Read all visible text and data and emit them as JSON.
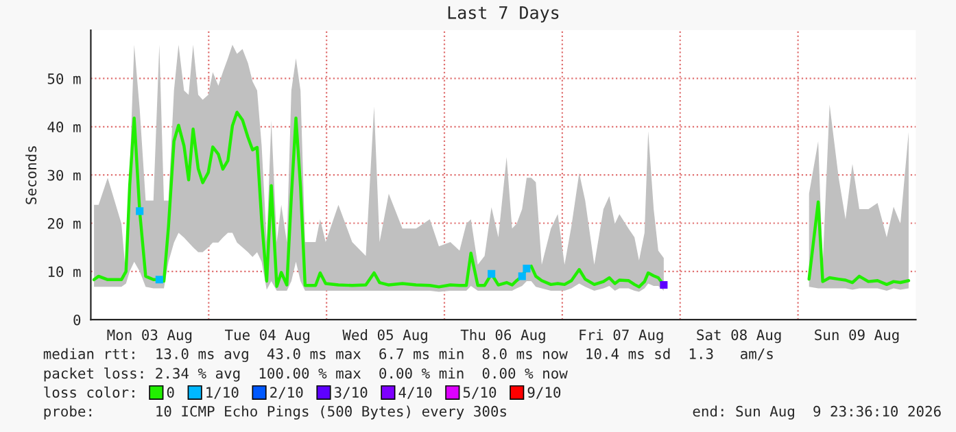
{
  "chart_data": {
    "type": "line",
    "title": "Last 7 Days",
    "ylabel": "Seconds",
    "xlim": [
      "2026-08-03T00:00",
      "2026-08-10T00:00"
    ],
    "ylim": [
      0,
      60
    ],
    "xticks": [
      {
        "value": "2026-08-03T12:00",
        "label": "Mon 03 Aug"
      },
      {
        "value": "2026-08-04T12:00",
        "label": "Tue 04 Aug"
      },
      {
        "value": "2026-08-05T12:00",
        "label": "Wed 05 Aug"
      },
      {
        "value": "2026-08-06T12:00",
        "label": "Thu 06 Aug"
      },
      {
        "value": "2026-08-07T12:00",
        "label": "Fri 07 Aug"
      },
      {
        "value": "2026-08-08T12:00",
        "label": "Sat 08 Aug"
      },
      {
        "value": "2026-08-09T12:00",
        "label": "Sun 09 Aug"
      }
    ],
    "yticks": [
      0,
      {
        "value": 10,
        "label": "10 m"
      },
      {
        "value": 20,
        "label": "20 m"
      },
      {
        "value": 30,
        "label": "30 m"
      },
      {
        "value": 40,
        "label": "40 m"
      },
      {
        "value": 50,
        "label": "50 m"
      }
    ],
    "grid": "y",
    "legend": "bottom",
    "legend_title": "loss color:",
    "ref_lines": [
      {
        "axis": "x",
        "value": "2026-08-04T00:00",
        "color": "#e07070",
        "line_style": "dotted"
      },
      {
        "axis": "x",
        "value": "2026-08-05T00:00",
        "color": "#e07070",
        "line_style": "dotted"
      },
      {
        "axis": "x",
        "value": "2026-08-06T00:00",
        "color": "#e07070",
        "line_style": "dotted"
      },
      {
        "axis": "x",
        "value": "2026-08-07T00:00",
        "color": "#e07070",
        "line_style": "dotted"
      },
      {
        "axis": "x",
        "value": "2026-08-08T00:00",
        "color": "#e07070",
        "line_style": "dotted"
      },
      {
        "axis": "x",
        "value": "2026-08-09T00:00",
        "color": "#e07070",
        "line_style": "dotted"
      }
    ],
    "series": [
      {
        "name": "0",
        "color": "#22ee00",
        "x": [
          "2026-08-03T00:39",
          "2026-08-03T01:35",
          "2026-08-03T03:26",
          "2026-08-03T06:14",
          "2026-08-03T07:10",
          "2026-08-03T07:55",
          "2026-08-03T08:50",
          "2026-08-03T09:57",
          "2026-08-03T11:10",
          "2026-08-03T12:45",
          "2026-08-03T13:57",
          "2026-08-03T14:53",
          "2026-08-03T15:49",
          "2026-08-03T16:56",
          "2026-08-03T17:52",
          "2026-08-03T18:59",
          "2026-08-03T19:55",
          "2026-08-03T20:50",
          "2026-08-03T21:52",
          "2026-08-03T22:47",
          "2026-08-03T23:55",
          "2026-08-04T00:50",
          "2026-08-04T01:58",
          "2026-08-04T02:53",
          "2026-08-04T03:55",
          "2026-08-04T04:50",
          "2026-08-04T05:46",
          "2026-08-04T06:53",
          "2026-08-04T08:00",
          "2026-08-04T08:56",
          "2026-08-04T09:52",
          "2026-08-04T10:47",
          "2026-08-04T11:49",
          "2026-08-04T12:45",
          "2026-08-04T13:52",
          "2026-08-04T14:47",
          "2026-08-04T15:55",
          "2026-08-04T16:50",
          "2026-08-04T17:46",
          "2026-08-04T18:42",
          "2026-08-04T19:38",
          "2026-08-04T21:46",
          "2026-08-04T22:42",
          "2026-08-04T23:49",
          "2026-08-05T02:25",
          "2026-08-05T05:13",
          "2026-08-05T08:00",
          "2026-08-05T09:41",
          "2026-08-05T10:48",
          "2026-08-05T12:40",
          "2026-08-05T15:27",
          "2026-08-05T18:14",
          "2026-08-05T21:02",
          "2026-08-05T22:53",
          "2026-08-06T01:13",
          "2026-08-06T03:05",
          "2026-08-06T04:28",
          "2026-08-06T05:24",
          "2026-08-06T06:48",
          "2026-08-06T08:11",
          "2026-08-06T09:35",
          "2026-08-06T10:59",
          "2026-08-06T12:40",
          "2026-08-06T13:47",
          "2026-08-06T14:43",
          "2026-08-06T15:49",
          "2026-08-06T16:45",
          "2026-08-06T17:41",
          "2026-08-06T18:37",
          "2026-08-06T19:49",
          "2026-08-06T21:41",
          "2026-08-06T23:05",
          "2026-08-07T00:28",
          "2026-08-07T01:52",
          "2026-08-07T03:27",
          "2026-08-07T04:40",
          "2026-08-07T06:31",
          "2026-08-07T08:23",
          "2026-08-07T09:35",
          "2026-08-07T10:43",
          "2026-08-07T11:38",
          "2026-08-07T13:29",
          "2026-08-07T14:42",
          "2026-08-07T15:38",
          "2026-08-07T16:45",
          "2026-08-07T17:30",
          "2026-08-07T18:37",
          "2026-08-07T19:33",
          "2026-08-07T20:40",
          "2026-08-08T10:00",
          "2026-08-09T02:15",
          "2026-08-09T04:07",
          "2026-08-09T05:02",
          "2026-08-09T06:26",
          "2026-08-09T08:17",
          "2026-08-09T09:41",
          "2026-08-09T11:05",
          "2026-08-09T12:29",
          "2026-08-09T14:20",
          "2026-08-09T16:12",
          "2026-08-09T18:04",
          "2026-08-09T19:28",
          "2026-08-09T20:51",
          "2026-08-09T22:32"
        ],
        "values": [
          8.3,
          9,
          8.3,
          8.3,
          10,
          27.8,
          41.8,
          22.5,
          9,
          8.3,
          8.3,
          8,
          19.3,
          37,
          40.3,
          36,
          29,
          39.5,
          31.3,
          28.4,
          30.5,
          35.8,
          34.3,
          31.2,
          33,
          40.2,
          43,
          41.4,
          37.8,
          35.2,
          35.7,
          20.6,
          8,
          27.8,
          6.9,
          9.8,
          7.2,
          25.5,
          41.8,
          27.6,
          7.1,
          7.1,
          9.7,
          7.5,
          7.2,
          7.1,
          7.2,
          9.7,
          7.7,
          7.2,
          7.5,
          7.2,
          7.1,
          6.8,
          7.2,
          7.1,
          7.1,
          13.8,
          7.1,
          7.1,
          9.5,
          7.2,
          7.7,
          7.2,
          8.1,
          9,
          10.6,
          11.1,
          9,
          8.1,
          7.3,
          7.5,
          7.3,
          8.1,
          10.4,
          8.4,
          7.3,
          7.9,
          8.7,
          7.5,
          8.2,
          8.1,
          7.3,
          6.8,
          7.9,
          9.7,
          9.1,
          8.7,
          7.2,
          null,
          8.4,
          24.4,
          7.9,
          8.7,
          8.4,
          8.2,
          7.7,
          9,
          7.9,
          8.1,
          7.3,
          7.9,
          7.7,
          8.1
        ],
        "lower": [
          6.8,
          6.8,
          6.8,
          6.8,
          7.5,
          10,
          12,
          10,
          6.8,
          6.5,
          6.5,
          6.5,
          12,
          16,
          18,
          17,
          16,
          15,
          14,
          14,
          15,
          16,
          16,
          17,
          18,
          18,
          16,
          15,
          14,
          13,
          14,
          12,
          6.2,
          8,
          6,
          6,
          6,
          8,
          12,
          8,
          6,
          6,
          6,
          6,
          6,
          6,
          6,
          6,
          6,
          6,
          6,
          6,
          6,
          5.8,
          6,
          6,
          6,
          7,
          6,
          6,
          6,
          6,
          6,
          6,
          6.5,
          7,
          8,
          8,
          6.8,
          6.5,
          6,
          6,
          6,
          6.5,
          7.5,
          6.8,
          6,
          6.5,
          7,
          6,
          6.5,
          6.5,
          6,
          5.8,
          6.5,
          7.5,
          7,
          7,
          6,
          null,
          6.8,
          6.5,
          6.5,
          6.5,
          6.5,
          6.5,
          6.2,
          6.5,
          6.5,
          6.5,
          6,
          6.5,
          6.2,
          6.5
        ],
        "upper": [
          23.8,
          23.8,
          29.4,
          19.9,
          9,
          30.4,
          57,
          43.7,
          24.7,
          24.7,
          57,
          24.7,
          24.7,
          47.5,
          57,
          47.5,
          46.6,
          57,
          46.6,
          45.6,
          46.6,
          51.3,
          48.5,
          51.3,
          54.2,
          57,
          55.1,
          56.1,
          53.2,
          49.4,
          47.5,
          36.1,
          16.1,
          41.3,
          16.1,
          23.8,
          16.1,
          47.5,
          54.2,
          47.5,
          16.1,
          16.1,
          20.8,
          16.1,
          23.8,
          16.1,
          13.2,
          44.2,
          16.1,
          26.1,
          18.9,
          18.9,
          20.8,
          15.2,
          16.1,
          14.3,
          19.9,
          20.8,
          11.4,
          13.2,
          23.3,
          17.1,
          33.7,
          18.9,
          19.9,
          22.9,
          29.4,
          29.4,
          28.5,
          11.4,
          18.9,
          21.9,
          11.4,
          19.4,
          30.4,
          24.7,
          11.4,
          22.9,
          25.6,
          19.9,
          21.9,
          18.9,
          17.1,
          12.3,
          18,
          39.1,
          22.9,
          14.3,
          12.8,
          null,
          26.1,
          37,
          11.4,
          44.6,
          29.4,
          20.8,
          32.3,
          22.9,
          22.9,
          24.2,
          17.1,
          23.4,
          19.9,
          38.9
        ]
      },
      {
        "name": "1/10",
        "color": "#00b8ff",
        "type": "scatter",
        "marker": "square",
        "x": [
          "2026-08-03T09:57",
          "2026-08-03T13:57",
          "2026-08-06T09:35",
          "2026-08-06T15:49",
          "2026-08-06T16:45"
        ],
        "values": [
          22.5,
          8.3,
          9.5,
          9,
          10.6
        ]
      },
      {
        "name": "2/10",
        "color": "#0059ff",
        "type": "scatter"
      },
      {
        "name": "3/10",
        "color": "#5e00ff",
        "type": "scatter",
        "marker": "square",
        "x": [
          "2026-08-07T20:40"
        ],
        "values": [
          7.2
        ]
      },
      {
        "name": "4/10",
        "color": "#7e00ff",
        "type": "scatter"
      },
      {
        "name": "5/10",
        "color": "#dd00ff",
        "type": "scatter"
      },
      {
        "name": "9/10",
        "color": "#ff0000",
        "type": "scatter"
      }
    ],
    "annotations": [
      "median rtt:  13.0 ms avg  43.0 ms max  6.7 ms min  8.0 ms now  10.4 ms sd  1.3   am/s",
      "packet loss: 2.34 % avg  100.00 % max  0.00 % min  0.00 % now",
      "probe:       10 ICMP Echo Pings (500 Bytes) every 300s",
      "end: Sun Aug  9 23:36:10 2026"
    ]
  }
}
